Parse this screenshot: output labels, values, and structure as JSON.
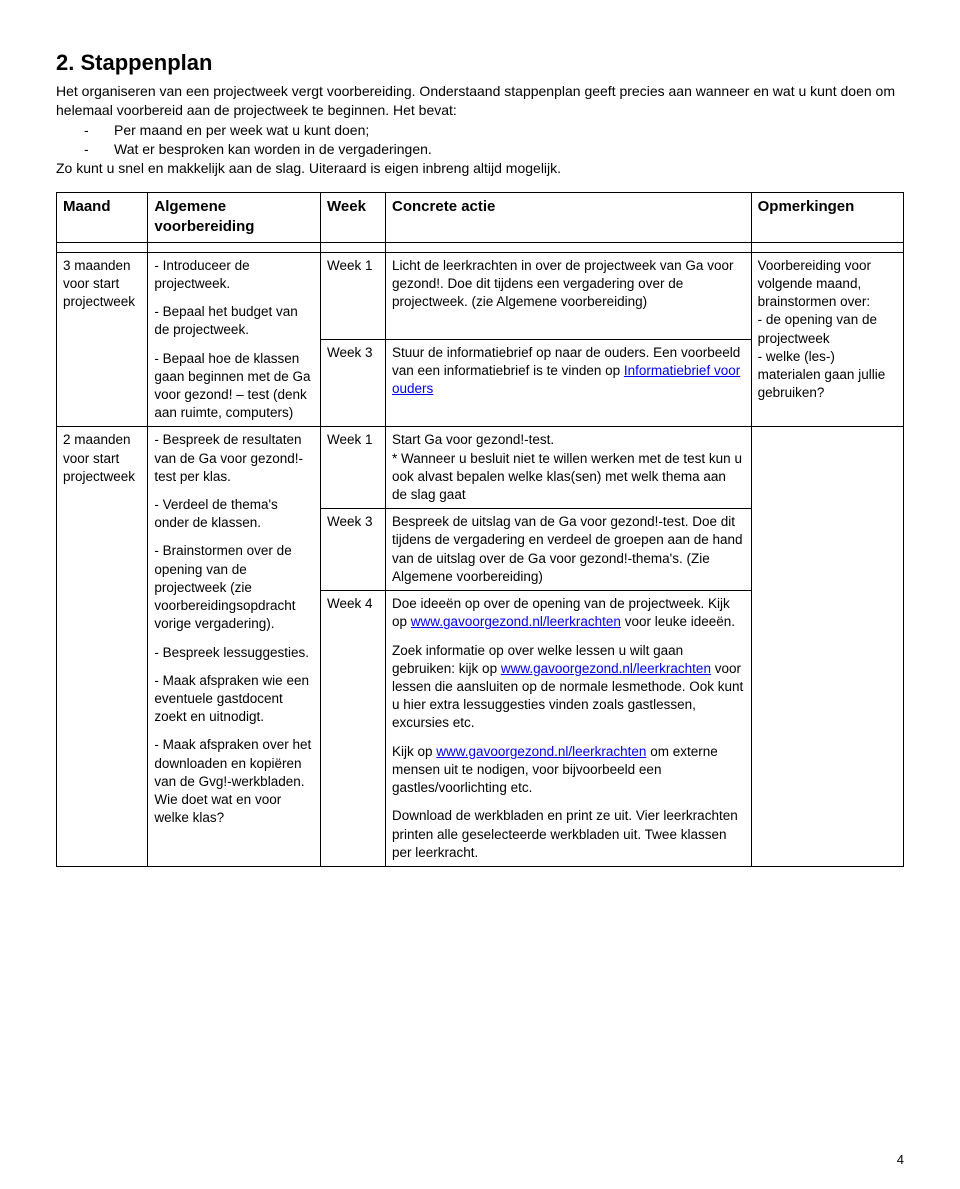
{
  "header": {
    "title": "2. Stappenplan",
    "intro_line1": "Het organiseren van een projectweek vergt voorbereiding. Onderstaand stappenplan geeft precies aan wanneer en wat u kunt doen om helemaal voorbereid aan de projectweek te beginnen. Het bevat:",
    "bullet1": "Per maand en per week wat u kunt doen;",
    "bullet2": "Wat er besproken kan worden in de vergaderingen.",
    "intro_line2": "Zo kunt u snel en makkelijk aan de slag. Uiteraard is eigen inbreng altijd mogelijk."
  },
  "table": {
    "headers": {
      "maand": "Maand",
      "algemene": "Algemene voorbereiding",
      "week": "Week",
      "actie": "Concrete actie",
      "opmerkingen": "Opmerkingen"
    },
    "row1": {
      "maand": "3 maanden voor start projectweek",
      "alg_p1": "- Introduceer de projectweek.",
      "alg_p2": "- Bepaal het budget van de projectweek.",
      "alg_p3": "- Bepaal hoe de klassen gaan beginnen met de Ga voor gezond! – test (denk aan ruimte, computers)",
      "week1": "Week 1",
      "actie1": "Licht de leerkrachten in over de projectweek van Ga voor gezond!. Doe dit tijdens een vergadering over de projectweek. (zie Algemene voorbereiding)",
      "week3": "Week 3",
      "actie3a": "Stuur de informatiebrief op naar de ouders. Een voorbeeld van een informatiebrief is te vinden op ",
      "actie3link": "Informatiebrief voor ouders",
      "opm": "Voorbereiding voor volgende maand, brainstormen over:\n- de opening van de projectweek\n- welke (les-) materialen gaan jullie gebruiken?"
    },
    "row2": {
      "maand": "2 maanden voor start projectweek",
      "alg_p1": "- Bespreek de resultaten van de Ga voor gezond!-test per klas.",
      "alg_p2": "- Verdeel de thema's onder de klassen.",
      "alg_p3": "- Brainstormen over de opening van de projectweek (zie voorbereidingsopdracht vorige vergadering).",
      "alg_p4": "- Bespreek lessuggesties.",
      "alg_p5": "- Maak afspraken wie een eventuele gastdocent zoekt en uitnodigt.",
      "alg_p6": "- Maak afspraken over het downloaden en kopiëren van de Gvg!-werkbladen. Wie doet wat en voor welke klas?",
      "week1": "Week 1",
      "actie1": "Start Ga voor gezond!-test.\n* Wanneer u besluit niet te willen werken met de test kun u ook alvast bepalen welke klas(sen) met welk thema aan de slag gaat",
      "week3": "Week 3",
      "actie3": "Bespreek de uitslag van de Ga voor gezond!-test. Doe dit tijdens de vergadering en verdeel de groepen aan de hand van de uitslag over de Ga voor gezond!-thema's. (Zie Algemene voorbereiding)",
      "week4": "Week 4",
      "actie4_p1a": "Doe ideeën op over de opening van de projectweek. Kijk op ",
      "actie4_p1link": "www.gavoorgezond.nl/leerkrachten",
      "actie4_p1b": " voor leuke ideeën.",
      "actie4_p2a": "Zoek informatie op over welke lessen u wilt gaan gebruiken: kijk op ",
      "actie4_p2link": "www.gavoorgezond.nl/leerkrachten",
      "actie4_p2b": " voor lessen die aansluiten op de normale lesmethode. Ook kunt u hier extra lessuggesties vinden zoals gastlessen, excursies etc.",
      "actie4_p3a": "Kijk op ",
      "actie4_p3link": "www.gavoorgezond.nl/leerkrachten",
      "actie4_p3b": " om externe mensen uit te nodigen, voor bijvoorbeeld een gastles/voorlichting etc.",
      "actie4_p4": "Download de werkbladen en print ze uit. Vier leerkrachten printen alle geselecteerde werkbladen uit. Twee klassen per leerkracht."
    }
  },
  "page_number": "4"
}
